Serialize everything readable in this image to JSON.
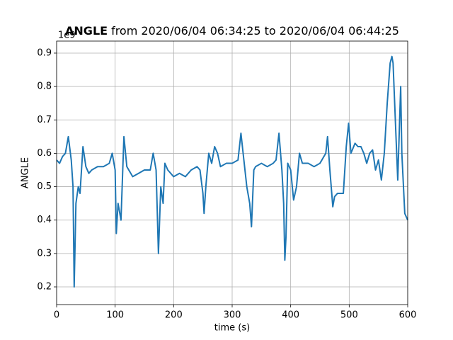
{
  "chart_data": {
    "type": "line",
    "title": "ANGLE",
    "subtitle": "from 2020/06/04 06:34:25 to 2020/06/04 06:44:25",
    "x_label": "time (s)",
    "y_label": "ANGLE",
    "y_offset_text": "1e9",
    "x": [
      0,
      5,
      10,
      15,
      20,
      25,
      28,
      30,
      33,
      37,
      40,
      45,
      50,
      55,
      60,
      70,
      80,
      90,
      95,
      100,
      102,
      105,
      110,
      115,
      120,
      130,
      140,
      150,
      160,
      165,
      170,
      174,
      178,
      182,
      185,
      190,
      200,
      210,
      220,
      230,
      240,
      245,
      250,
      252,
      255,
      260,
      265,
      270,
      275,
      280,
      290,
      300,
      310,
      315,
      320,
      325,
      330,
      333,
      337,
      340,
      350,
      360,
      370,
      375,
      380,
      385,
      388,
      390,
      392,
      395,
      400,
      405,
      410,
      415,
      420,
      430,
      440,
      450,
      460,
      463,
      467,
      472,
      475,
      480,
      490,
      495,
      499,
      503,
      510,
      515,
      520,
      525,
      530,
      535,
      540,
      545,
      550,
      555,
      560,
      565,
      570,
      573,
      575,
      580,
      583,
      588,
      590,
      595,
      600
    ],
    "series": [
      {
        "name": "ANGLE",
        "color": "#1f77b4",
        "values": [
          0.58,
          0.57,
          0.59,
          0.6,
          0.65,
          0.58,
          0.5,
          0.2,
          0.45,
          0.5,
          0.48,
          0.62,
          0.56,
          0.54,
          0.55,
          0.56,
          0.56,
          0.57,
          0.6,
          0.55,
          0.36,
          0.45,
          0.4,
          0.65,
          0.56,
          0.53,
          0.54,
          0.55,
          0.55,
          0.6,
          0.55,
          0.3,
          0.5,
          0.45,
          0.57,
          0.55,
          0.53,
          0.54,
          0.53,
          0.55,
          0.56,
          0.55,
          0.48,
          0.42,
          0.5,
          0.6,
          0.57,
          0.62,
          0.6,
          0.56,
          0.57,
          0.57,
          0.58,
          0.66,
          0.58,
          0.5,
          0.45,
          0.38,
          0.55,
          0.56,
          0.57,
          0.56,
          0.57,
          0.58,
          0.66,
          0.55,
          0.45,
          0.28,
          0.35,
          0.57,
          0.55,
          0.46,
          0.5,
          0.6,
          0.57,
          0.57,
          0.56,
          0.57,
          0.6,
          0.65,
          0.55,
          0.44,
          0.47,
          0.48,
          0.48,
          0.62,
          0.69,
          0.6,
          0.63,
          0.62,
          0.62,
          0.6,
          0.57,
          0.6,
          0.61,
          0.55,
          0.58,
          0.52,
          0.6,
          0.75,
          0.87,
          0.89,
          0.87,
          0.65,
          0.52,
          0.8,
          0.6,
          0.42,
          0.4
        ]
      }
    ],
    "xlim": [
      0,
      600
    ],
    "xticks": [
      0,
      100,
      200,
      300,
      400,
      500,
      600
    ],
    "ylim": [
      0.147,
      0.936
    ],
    "yticks": [
      0.2,
      0.3,
      0.4,
      0.5,
      0.6,
      0.7,
      0.8,
      0.9
    ],
    "grid": true
  }
}
